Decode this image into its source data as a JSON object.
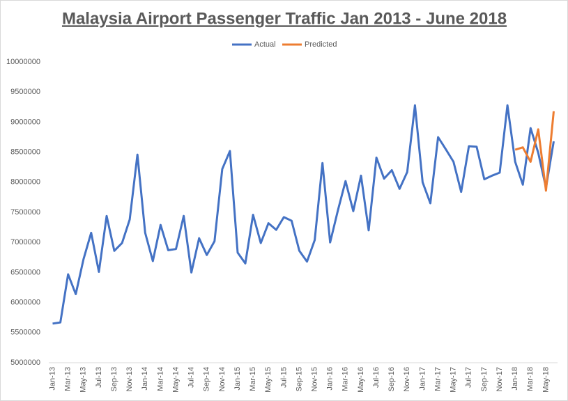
{
  "chart_data": {
    "type": "line",
    "title": "Malaysia Airport Passenger Traffic Jan 2013 - June 2018",
    "categories": [
      "Jan-13",
      null,
      "Mar-13",
      null,
      "May-13",
      null,
      "Jul-13",
      null,
      "Sep-13",
      null,
      "Nov-13",
      null,
      "Jan-14",
      null,
      "Mar-14",
      null,
      "May-14",
      null,
      "Jul-14",
      null,
      "Sep-14",
      null,
      "Nov-14",
      null,
      "Jan-15",
      null,
      "Mar-15",
      null,
      "May-15",
      null,
      "Jul-15",
      null,
      "Sep-15",
      null,
      "Nov-15",
      null,
      "Jan-16",
      null,
      "Mar-16",
      null,
      "May-16",
      null,
      "Jul-16",
      null,
      "Sep-16",
      null,
      "Nov-16",
      null,
      "Jan-17",
      null,
      "Mar-17",
      null,
      "May-17",
      null,
      "Jul-17",
      null,
      "Sep-17",
      null,
      "Nov-17",
      null,
      "Jan-18",
      null,
      "Mar-18",
      null,
      "May-18",
      null
    ],
    "series": [
      {
        "name": "Actual",
        "color": "#4472c4",
        "values": [
          5650000,
          5670000,
          6470000,
          6140000,
          6720000,
          7160000,
          6510000,
          7440000,
          6860000,
          6990000,
          7380000,
          8460000,
          7160000,
          6690000,
          7290000,
          6870000,
          6890000,
          7440000,
          6500000,
          7070000,
          6790000,
          7020000,
          8220000,
          8520000,
          6830000,
          6650000,
          7460000,
          6990000,
          7320000,
          7210000,
          7420000,
          7360000,
          6860000,
          6680000,
          7040000,
          8320000,
          7000000,
          7530000,
          8020000,
          7520000,
          8110000,
          7200000,
          8410000,
          8060000,
          8200000,
          7890000,
          8170000,
          9280000,
          8000000,
          7650000,
          8750000,
          8550000,
          8340000,
          7840000,
          8600000,
          8590000,
          8050000,
          8110000,
          8160000,
          9280000,
          8340000,
          7960000,
          8900000,
          8490000,
          7910000,
          8680000
        ]
      },
      {
        "name": "Predicted",
        "color": "#ed7d31",
        "values": [
          null,
          null,
          null,
          null,
          null,
          null,
          null,
          null,
          null,
          null,
          null,
          null,
          null,
          null,
          null,
          null,
          null,
          null,
          null,
          null,
          null,
          null,
          null,
          null,
          null,
          null,
          null,
          null,
          null,
          null,
          null,
          null,
          null,
          null,
          null,
          null,
          null,
          null,
          null,
          null,
          null,
          null,
          null,
          null,
          null,
          null,
          null,
          null,
          null,
          null,
          null,
          null,
          null,
          null,
          null,
          null,
          null,
          null,
          null,
          null,
          8540000,
          8580000,
          8340000,
          8880000,
          7860000,
          9180000
        ]
      }
    ],
    "ylim": [
      5000000,
      10000000
    ],
    "yticks": [
      5000000,
      5500000,
      6000000,
      6500000,
      7000000,
      7500000,
      8000000,
      8500000,
      9000000,
      9500000,
      10000000
    ],
    "grid": false
  }
}
